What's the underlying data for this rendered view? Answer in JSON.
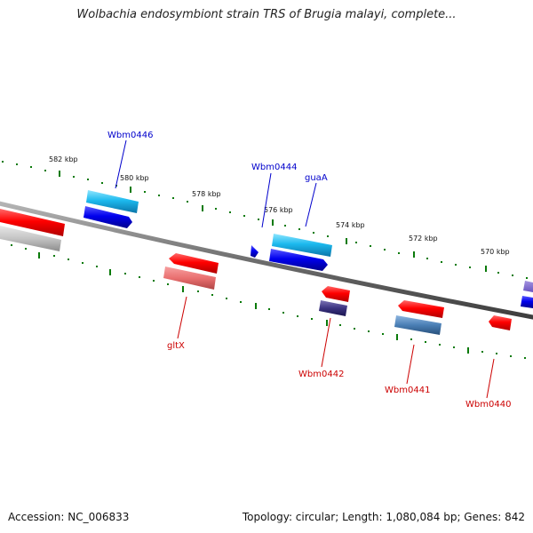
{
  "title": "Wolbachia endosymbiont strain TRS of Brugia malayi, complete...",
  "footer": {
    "accession": "Accession: NC_006833",
    "summary": "Topology: circular; Length: 1,080,084 bp; Genes: 842"
  },
  "kbp_labels": [
    "582 kbp",
    "580 kbp",
    "578 kbp",
    "576 kbp",
    "574 kbp",
    "572 kbp",
    "570 kbp"
  ],
  "gene_labels": {
    "wbm0446": "Wbm0446",
    "wbm0444": "Wbm0444",
    "guaA": "guaA",
    "gltX": "gltX",
    "wbm0442": "Wbm0442",
    "wbm0441": "Wbm0441",
    "wbm0440": "Wbm0440"
  },
  "colors": {
    "forward_label": "#0000cc",
    "reverse_label": "#cc0000",
    "tick": "#0a7a0a",
    "backbone": "#7a7a7a"
  }
}
